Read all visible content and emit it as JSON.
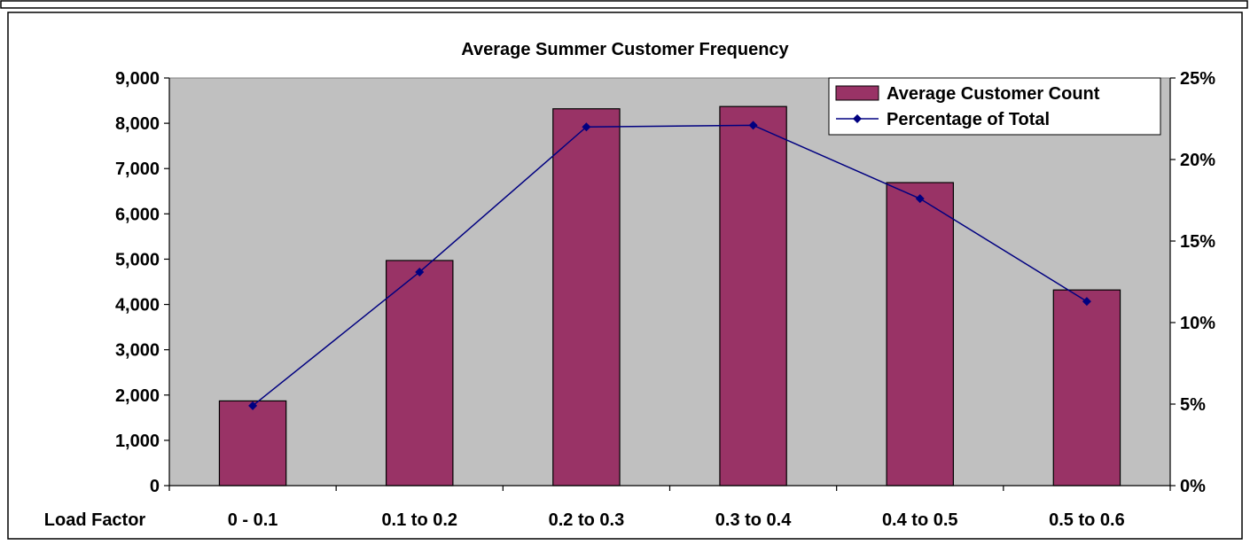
{
  "chart_data": {
    "type": "bar",
    "title": "Average Summer Customer Frequency",
    "xlabel": "Load Factor",
    "categories": [
      "0 - 0.1",
      "0.1 to 0.2",
      "0.2 to 0.3",
      "0.3 to 0.4",
      "0.4 to 0.5",
      "0.5 to 0.6"
    ],
    "series": [
      {
        "name": "Average Customer Count",
        "type": "bar",
        "axis": "left",
        "color": "#993366",
        "values": [
          1870,
          4970,
          8320,
          8370,
          6690,
          4320
        ]
      },
      {
        "name": "Percentage of Total",
        "type": "line",
        "axis": "right",
        "color": "#000080",
        "values": [
          4.9,
          13.1,
          22.0,
          22.1,
          17.6,
          11.3
        ]
      }
    ],
    "y_left": {
      "min": 0,
      "max": 9000,
      "step": 1000,
      "tick_labels": [
        "0",
        "1,000",
        "2,000",
        "3,000",
        "4,000",
        "5,000",
        "6,000",
        "7,000",
        "8,000",
        "9,000"
      ]
    },
    "y_right": {
      "min": 0,
      "max": 25,
      "step": 5,
      "tick_labels": [
        "0%",
        "5%",
        "10%",
        "15%",
        "20%",
        "25%"
      ]
    },
    "plot_background": "#c0c0c0",
    "grid": false,
    "legend_position": "top-right"
  }
}
